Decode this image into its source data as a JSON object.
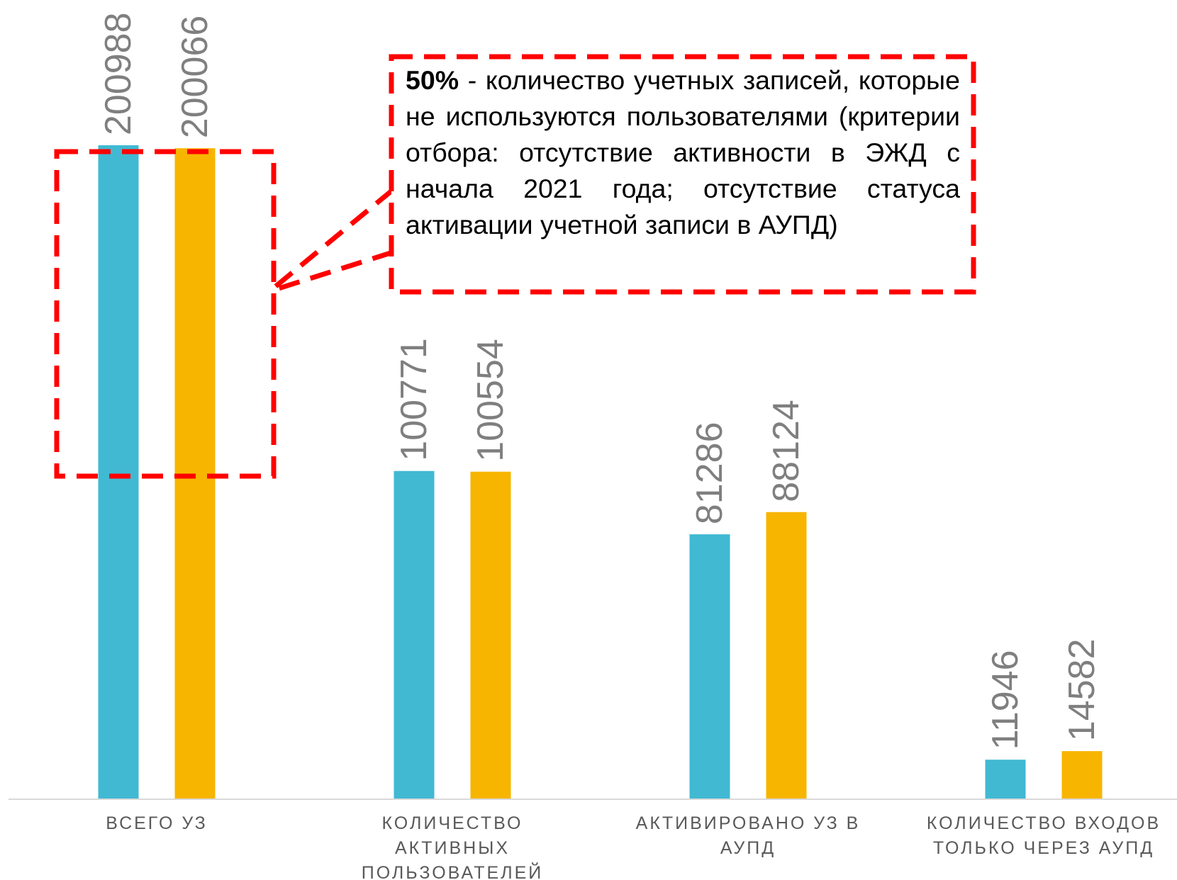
{
  "chart_data": {
    "type": "bar",
    "categories": [
      "ВСЕГО УЗ",
      "КОЛИЧЕСТВО АКТИВНЫХ ПОЛЬЗОВАТЕЛЕЙ",
      "АКТИВИРОВАНО УЗ В АУПД",
      "КОЛИЧЕСТВО ВХОДОВ ТОЛЬКО ЧЕРЕЗ АУПД"
    ],
    "category_lines": [
      [
        "ВСЕГО УЗ"
      ],
      [
        "КОЛИЧЕСТВО",
        "АКТИВНЫХ",
        "ПОЛЬЗОВАТЕЛЕЙ"
      ],
      [
        "АКТИВИРОВАНО УЗ В",
        "АУПД"
      ],
      [
        "КОЛИЧЕСТВО ВХОДОВ",
        "ТОЛЬКО ЧЕРЕЗ АУПД"
      ]
    ],
    "series": [
      {
        "values": [
          200988,
          100771,
          81286,
          11946
        ],
        "color": "#41B9D3"
      },
      {
        "values": [
          200066,
          100554,
          88124,
          14582
        ],
        "color": "#F7B500"
      }
    ],
    "ylim": [
      0,
      200988
    ],
    "data_labels": true,
    "data_label_rotation": "vertical",
    "grid": false,
    "legend": "none"
  },
  "callout": {
    "bold": "50%",
    "text": " - количество учетных записей, которые не используются пользователями (критерии отбора: отсутствие активности в ЭЖД с начала 2021 года; отсутствие статуса активации учетной записи в АУПД)",
    "border_color": "#FF0000"
  }
}
